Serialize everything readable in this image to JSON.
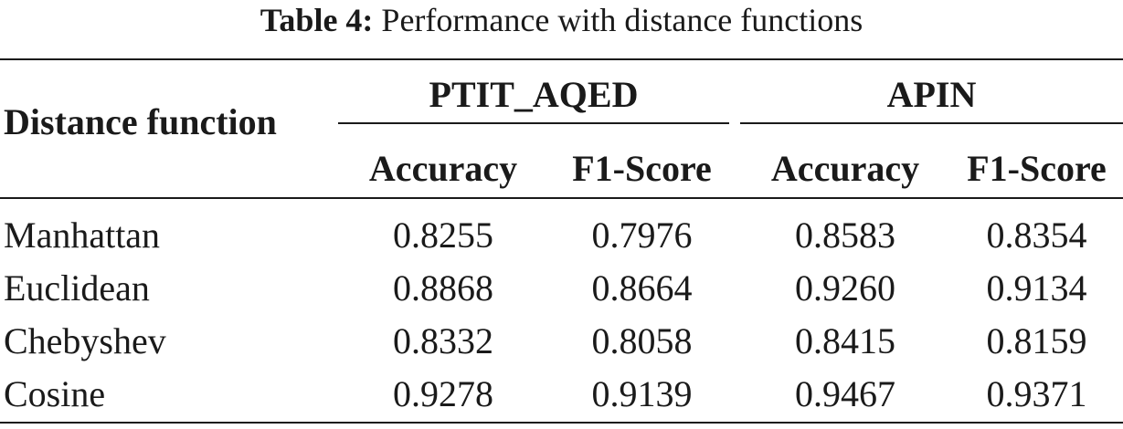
{
  "caption": {
    "label": "Table 4:",
    "text": "Performance with distance functions"
  },
  "table": {
    "row_header": "Distance function",
    "groups": [
      {
        "name": "PTIT_AQED",
        "columns": [
          "Accuracy",
          "F1-Score"
        ]
      },
      {
        "name": "APIN",
        "columns": [
          "Accuracy",
          "F1-Score"
        ]
      }
    ],
    "rows": [
      {
        "name": "Manhattan",
        "values": [
          "0.8255",
          "0.7976",
          "0.8583",
          "0.8354"
        ]
      },
      {
        "name": "Euclidean",
        "values": [
          "0.8868",
          "0.8664",
          "0.9260",
          "0.9134"
        ]
      },
      {
        "name": "Chebyshev",
        "values": [
          "0.8332",
          "0.8058",
          "0.8415",
          "0.8159"
        ]
      },
      {
        "name": "Cosine",
        "values": [
          "0.9278",
          "0.9139",
          "0.9467",
          "0.9371"
        ]
      }
    ]
  }
}
